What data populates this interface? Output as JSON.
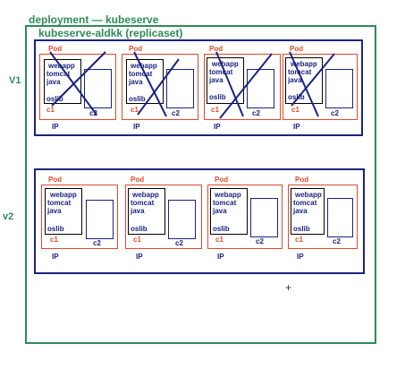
{
  "deployment": {
    "label": "deployment — kubeserve"
  },
  "replicaset": {
    "label": "kubeserve-aldkk (replicaset)"
  },
  "colors": {
    "deployment": "#2e8b57",
    "replicaset": "#1a237e",
    "pod": "#e04a2a",
    "cross": "#1a237e"
  },
  "v1": {
    "label": "V1",
    "pods": [
      {
        "pod": "Pod",
        "app": "webapp",
        "server": "tomcat",
        "lang": "java",
        "lib": "oslib",
        "c1": "c1",
        "c2": "c2",
        "ip": "IP",
        "crossed": true
      },
      {
        "pod": "Pod",
        "app": "webapp",
        "server": "tomcat",
        "lang": "java",
        "lib": "oslib",
        "c1": "c1",
        "c2": "c2",
        "ip": "IP",
        "crossed": true
      },
      {
        "pod": "Pod",
        "app": "webapp",
        "server": "tomcat",
        "lang": "java",
        "lib": "oslib",
        "c1": "c1",
        "c2": "c2",
        "ip": "IP",
        "crossed": true
      },
      {
        "pod": "Pod",
        "app": "webapp",
        "server": "tomcat",
        "lang": "java",
        "lib": "oslib",
        "c1": "c1",
        "c2": "c2",
        "ip": "IP",
        "crossed": true
      }
    ]
  },
  "v2": {
    "label": "v2",
    "pods": [
      {
        "pod": "Pod",
        "app": "webapp",
        "server": "tomcat",
        "lang": "java",
        "lib": "oslib",
        "c1": "c1",
        "c2": "c2",
        "ip": "IP"
      },
      {
        "pod": "Pod",
        "app": "webapp",
        "server": "tomcat",
        "lang": "java",
        "lib": "oslib",
        "c1": "c1",
        "c2": "c2",
        "ip": "IP"
      },
      {
        "pod": "Pod",
        "app": "webapp",
        "server": "tomcat",
        "lang": "java",
        "lib": "oslib",
        "c1": "c1",
        "c2": "c2",
        "ip": "IP"
      },
      {
        "pod": "Pod",
        "app": "webapp",
        "server": "tomcat",
        "lang": "java",
        "lib": "oslib",
        "c1": "c1",
        "c2": "c2",
        "ip": "IP"
      }
    ]
  },
  "cursor": {
    "icon": "crosshair-icon",
    "glyph": "+"
  }
}
